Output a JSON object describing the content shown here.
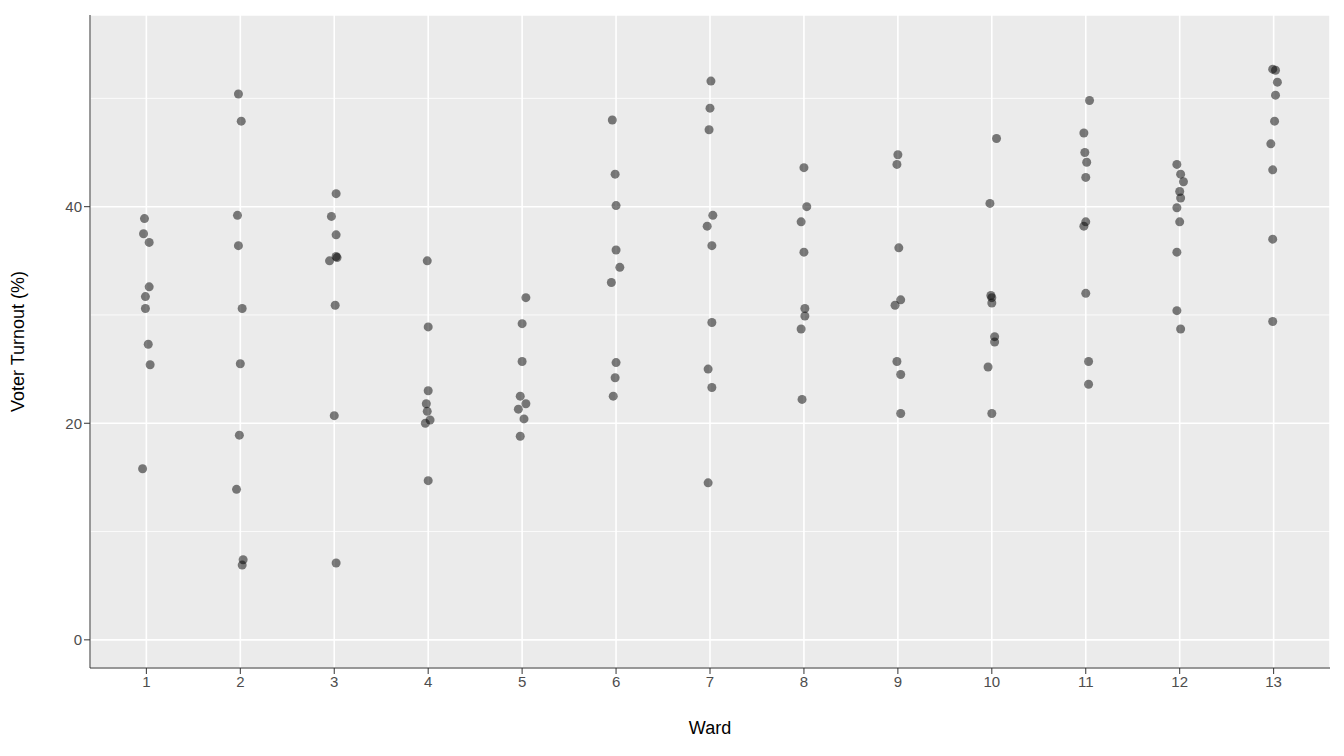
{
  "chart_data": {
    "type": "scatter",
    "xlabel": "Ward",
    "ylabel": "Voter Turnout (%)",
    "color": "#000000",
    "marker": "circle",
    "grid": true,
    "xlim": [
      0.4,
      13.6
    ],
    "ylim": [
      -2.6,
      57.7
    ],
    "xticks": [
      1,
      2,
      3,
      4,
      5,
      6,
      7,
      8,
      9,
      10,
      11,
      12,
      13
    ],
    "yticks": [
      0,
      20,
      40
    ],
    "x": [
      0.98,
      0.97,
      1.03,
      1.03,
      0.99,
      0.99,
      1.02,
      1.04,
      0.96,
      1.98,
      2.01,
      1.97,
      1.98,
      2.02,
      2.0,
      1.99,
      1.96,
      2.03,
      2.02,
      3.02,
      2.97,
      3.02,
      3.02,
      3.03,
      2.95,
      3.01,
      3.0,
      3.02,
      3.99,
      4.0,
      4.0,
      3.98,
      3.99,
      4.02,
      3.97,
      4.0,
      5.04,
      5.0,
      5.0,
      4.98,
      5.04,
      4.96,
      5.02,
      4.98,
      5.96,
      5.99,
      6.0,
      6.0,
      6.04,
      5.95,
      6.0,
      5.99,
      5.97,
      7.01,
      7.0,
      6.99,
      7.03,
      6.97,
      7.02,
      7.02,
      6.98,
      7.02,
      6.98,
      8.0,
      8.03,
      7.97,
      8.0,
      8.01,
      8.01,
      7.97,
      7.98,
      9.0,
      8.99,
      9.01,
      9.03,
      8.97,
      8.99,
      9.03,
      9.03,
      10.05,
      9.98,
      9.99,
      10.0,
      10.0,
      10.03,
      10.03,
      9.96,
      10.0,
      11.04,
      10.98,
      10.99,
      11.01,
      11.0,
      11.0,
      10.98,
      11.0,
      11.03,
      11.03,
      11.97,
      12.01,
      12.04,
      12.0,
      12.01,
      11.97,
      12.0,
      11.97,
      11.97,
      12.01,
      12.99,
      13.02,
      13.04,
      13.02,
      13.01,
      12.97,
      12.99,
      12.99,
      12.99
    ],
    "values": [
      38.9,
      37.5,
      36.7,
      32.6,
      31.7,
      30.6,
      27.3,
      25.4,
      15.8,
      50.4,
      47.9,
      39.2,
      36.4,
      30.6,
      25.5,
      18.9,
      13.9,
      7.4,
      6.9,
      41.2,
      39.1,
      37.4,
      35.4,
      35.3,
      35.0,
      30.9,
      20.7,
      7.1,
      35.0,
      28.9,
      23.0,
      21.8,
      21.1,
      20.3,
      20.0,
      14.7,
      31.6,
      29.2,
      25.7,
      22.5,
      21.8,
      21.3,
      20.4,
      18.8,
      48.0,
      43.0,
      40.1,
      36.0,
      34.4,
      33.0,
      25.6,
      24.2,
      22.5,
      51.6,
      49.1,
      47.1,
      39.2,
      38.2,
      36.4,
      29.3,
      25.0,
      23.3,
      14.5,
      43.6,
      40.0,
      38.6,
      35.8,
      30.6,
      29.9,
      28.7,
      22.2,
      44.8,
      43.9,
      36.2,
      31.4,
      30.9,
      25.7,
      24.5,
      20.9,
      46.3,
      40.3,
      31.8,
      31.6,
      31.1,
      28.0,
      27.5,
      25.2,
      20.9,
      49.8,
      46.8,
      45.0,
      44.1,
      42.7,
      38.6,
      38.2,
      32.0,
      25.7,
      23.6,
      43.9,
      43.0,
      42.3,
      41.4,
      40.8,
      39.9,
      38.6,
      35.8,
      30.4,
      28.7,
      52.7,
      52.6,
      51.5,
      50.3,
      47.9,
      45.8,
      43.4,
      37.0,
      29.4
    ]
  }
}
